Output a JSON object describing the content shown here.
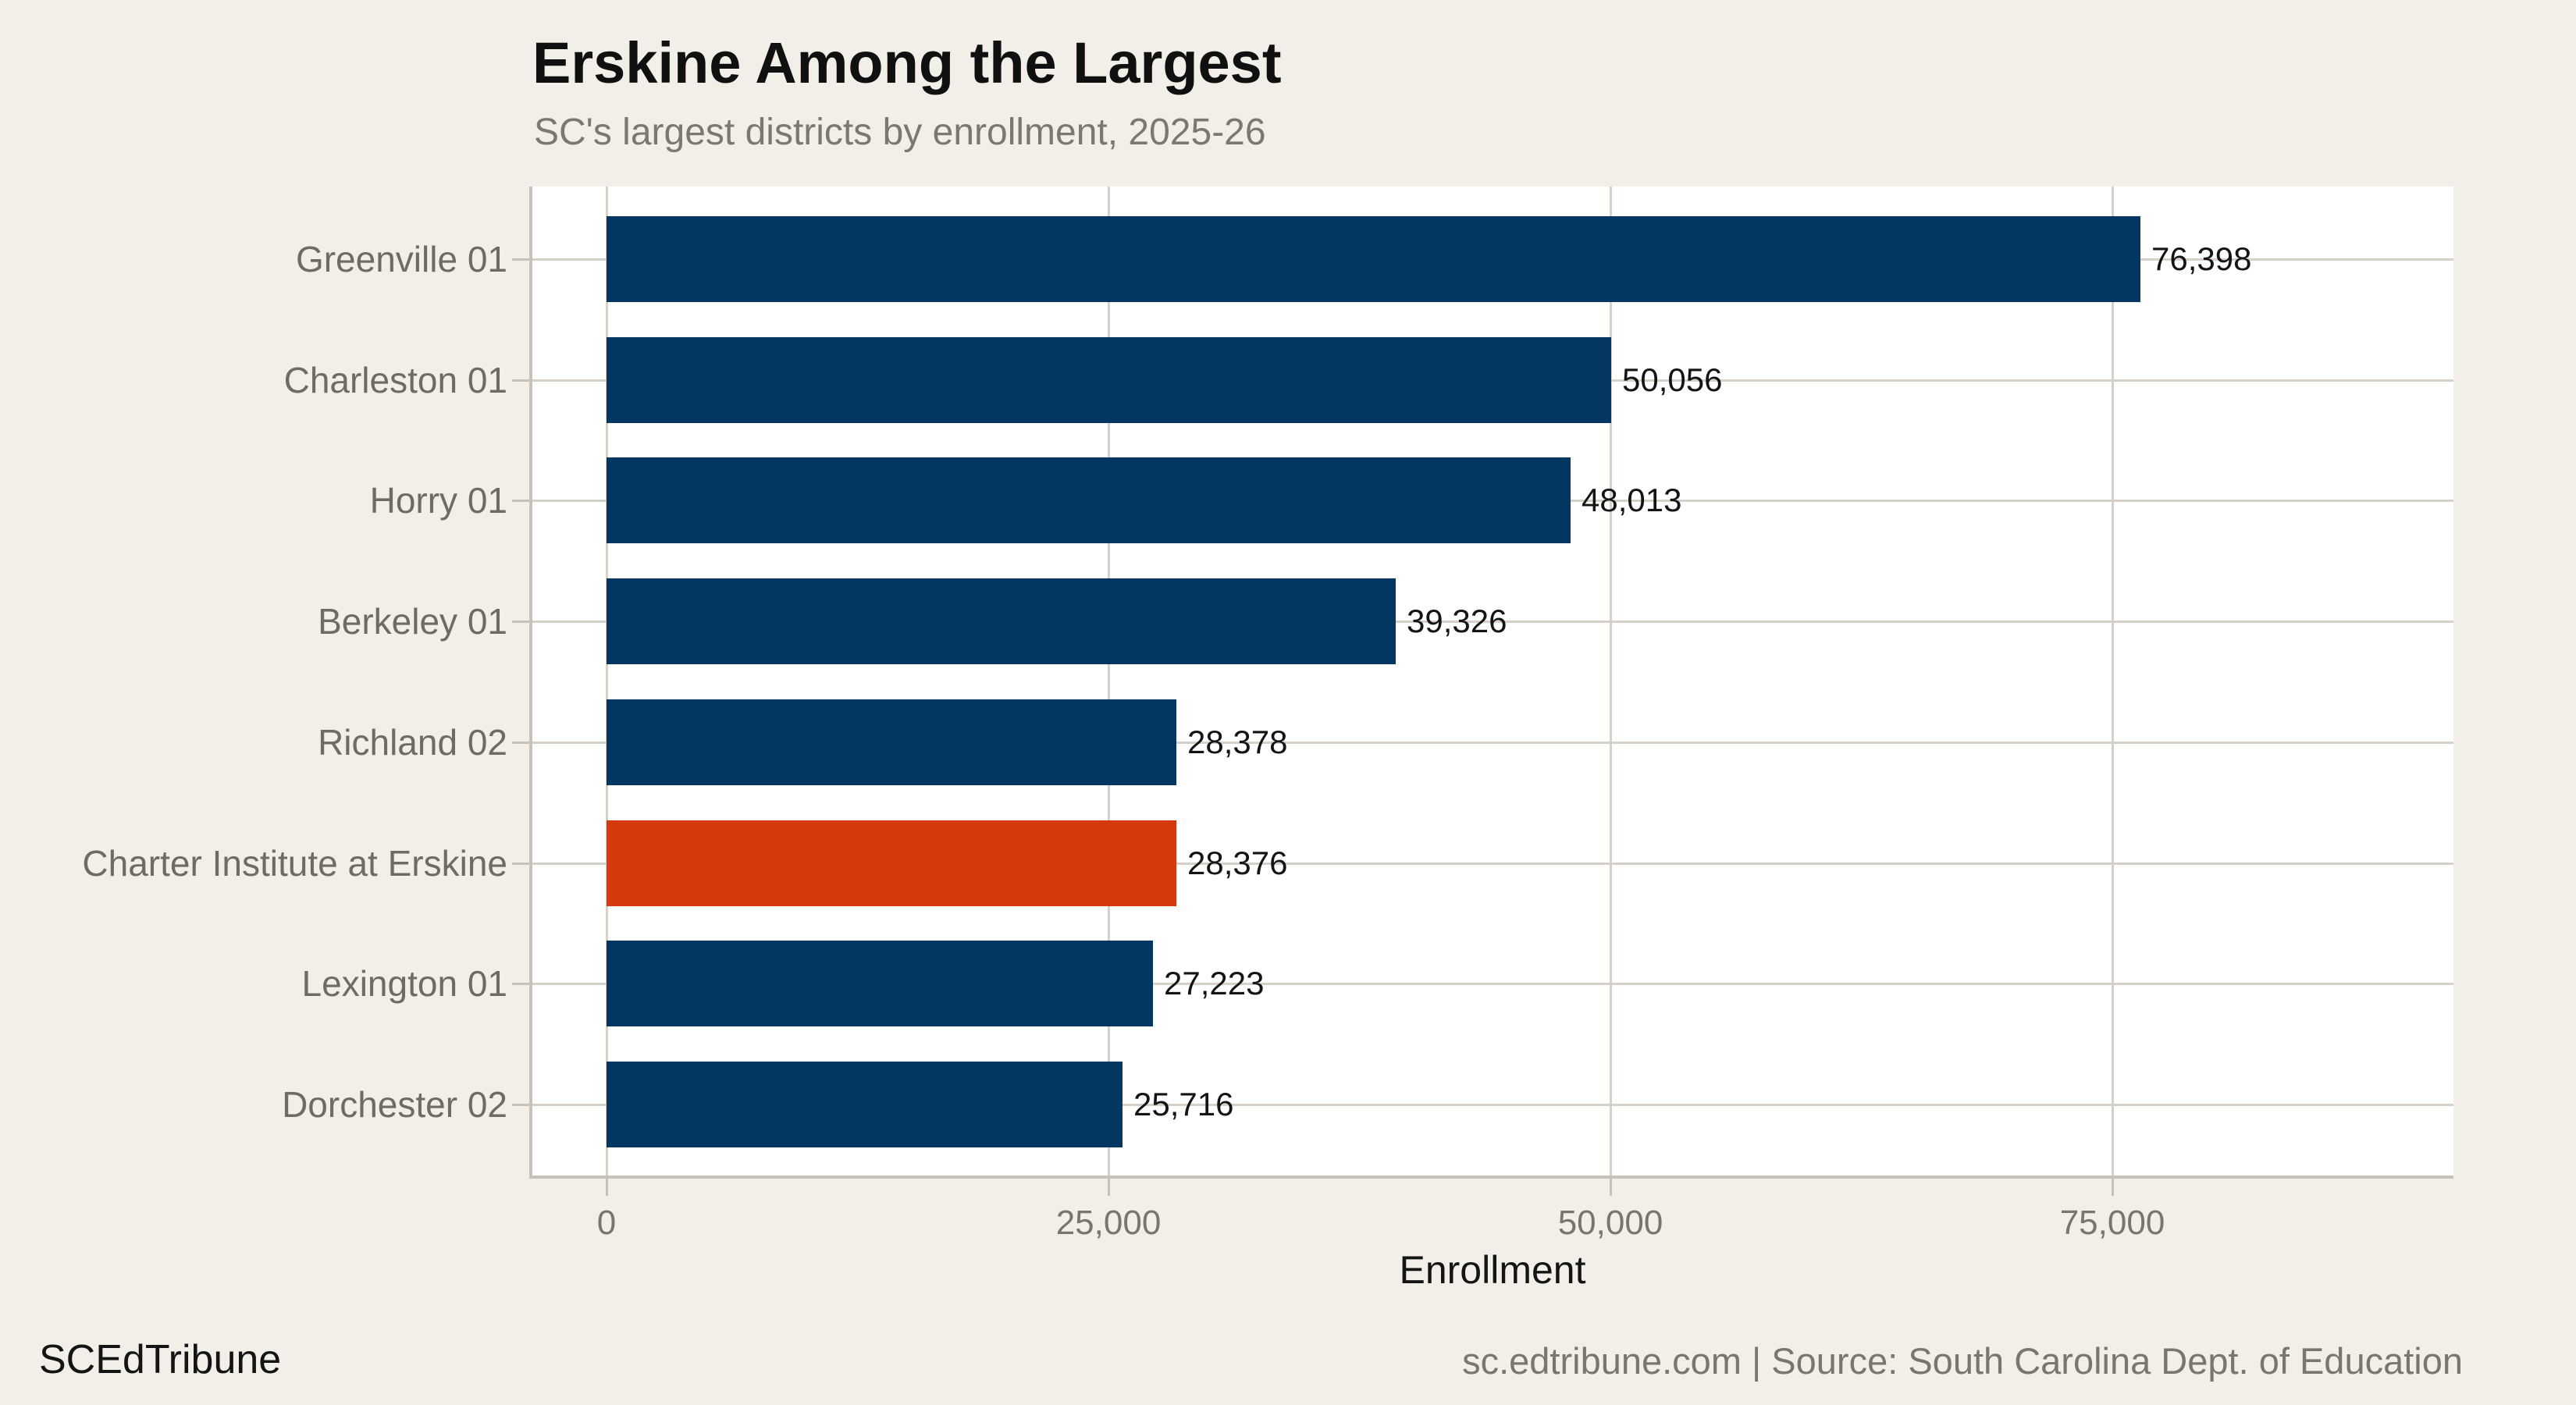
{
  "header": {
    "title": "Erskine Among the Largest",
    "subtitle": "SC's largest districts by enrollment, 2025-26"
  },
  "chart_data": {
    "type": "bar",
    "orientation": "horizontal",
    "title": "Erskine Among the Largest",
    "subtitle": "SC's largest districts by enrollment, 2025-26",
    "xlabel": "Enrollment",
    "categories": [
      "Greenville 01",
      "Charleston 01",
      "Horry 01",
      "Berkeley 01",
      "Richland 02",
      "Charter Institute at Erskine",
      "Lexington 01",
      "Dorchester 02"
    ],
    "values": [
      76398,
      50056,
      48013,
      39326,
      28378,
      28376,
      27223,
      25716
    ],
    "value_labels": [
      "76,398",
      "50,056",
      "48,013",
      "39,326",
      "28,378",
      "28,376",
      "27,223",
      "25,716"
    ],
    "highlight_category": "Charter Institute at Erskine",
    "highlight_index": 5,
    "x_ticks": [
      {
        "value": 0,
        "label": "0"
      },
      {
        "value": 25000,
        "label": "25,000"
      },
      {
        "value": 50000,
        "label": "50,000"
      },
      {
        "value": 75000,
        "label": "75,000"
      }
    ],
    "xlim": [
      0,
      92000
    ],
    "grid": "horizontal line per category and vertical lines at x ticks, white panel on beige page",
    "legend": "none",
    "colors": {
      "bar": "#033661",
      "highlight": "#d43a0e",
      "panel": "#ffffff",
      "background": "#f2eee8",
      "gridline": "#d5d0c8",
      "axis_line": "#c7c2b8",
      "category_label": "#6f6b64",
      "value_label": "#141414"
    }
  },
  "footer": {
    "brand": "SCEdTribune",
    "source": "sc.edtribune.com | Source: South Carolina Dept. of Education"
  }
}
